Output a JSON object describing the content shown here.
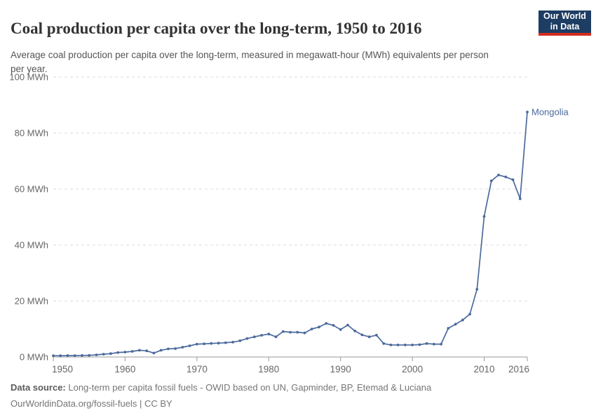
{
  "header": {
    "title": "Coal production per capita over the long-term, 1950 to 2016",
    "subtitle": "Average coal production per capita over the long-term, measured in megawatt-hour (MWh) equivalents per person per year.",
    "logo": {
      "line1": "Our World",
      "line2": "in Data",
      "bg_color": "#1d3d63",
      "accent_color": "#d42b21"
    }
  },
  "chart_data": {
    "type": "line",
    "title": "Coal production per capita over the long-term, 1950 to 2016",
    "subtitle": "Average coal production per capita over the long-term, measured in megawatt-hour (MWh) equivalents per person per year.",
    "xlabel": "",
    "ylabel": "",
    "xlim": [
      1950,
      2016
    ],
    "ylim": [
      0,
      100
    ],
    "x_ticks": [
      1950,
      1960,
      1970,
      1980,
      1990,
      2000,
      2010,
      2016
    ],
    "y_ticks": [
      0,
      20,
      40,
      60,
      80,
      100
    ],
    "y_tick_suffix": " MWh",
    "grid": "horizontal-dashed",
    "legend_position": "end-of-line-label",
    "series": [
      {
        "name": "Mongolia",
        "color": "#4c6a9c",
        "x": [
          1950,
          1951,
          1952,
          1953,
          1954,
          1955,
          1956,
          1957,
          1958,
          1959,
          1960,
          1961,
          1962,
          1963,
          1964,
          1965,
          1966,
          1967,
          1968,
          1969,
          1970,
          1971,
          1972,
          1973,
          1974,
          1975,
          1976,
          1977,
          1978,
          1979,
          1980,
          1981,
          1982,
          1983,
          1984,
          1985,
          1986,
          1987,
          1988,
          1989,
          1990,
          1991,
          1992,
          1993,
          1994,
          1995,
          1996,
          1997,
          1998,
          1999,
          2000,
          2001,
          2002,
          2003,
          2004,
          2005,
          2006,
          2007,
          2008,
          2009,
          2010,
          2011,
          2012,
          2013,
          2014,
          2015,
          2016
        ],
        "values": [
          0.45,
          0.45,
          0.5,
          0.5,
          0.55,
          0.6,
          0.75,
          1.0,
          1.2,
          1.6,
          1.75,
          2.0,
          2.4,
          2.2,
          1.4,
          2.4,
          2.9,
          3.0,
          3.5,
          4.0,
          4.6,
          4.7,
          4.85,
          4.95,
          5.1,
          5.3,
          5.8,
          6.6,
          7.2,
          7.75,
          8.2,
          7.2,
          9.1,
          8.85,
          8.85,
          8.6,
          10.0,
          10.7,
          12.0,
          11.3,
          9.8,
          11.4,
          9.3,
          7.9,
          7.2,
          7.8,
          4.8,
          4.3,
          4.3,
          4.3,
          4.3,
          4.4,
          4.8,
          4.6,
          4.6,
          10.25,
          11.7,
          13.2,
          15.3,
          24.2,
          50.2,
          62.9,
          65.0,
          64.3,
          63.3,
          56.5,
          87.5
        ]
      }
    ],
    "colors": {
      "line": "#4c6a9c",
      "gridline": "#dddddd",
      "axis": "#999999",
      "tick_label": "#666666"
    }
  },
  "footer": {
    "source_label": "Data source:",
    "source_text": " Long-term per capita fossil fuels - OWID based on UN, Gapminder, BP, Etemad & Luciana",
    "license_text": "OurWorldinData.org/fossil-fuels | CC BY"
  }
}
